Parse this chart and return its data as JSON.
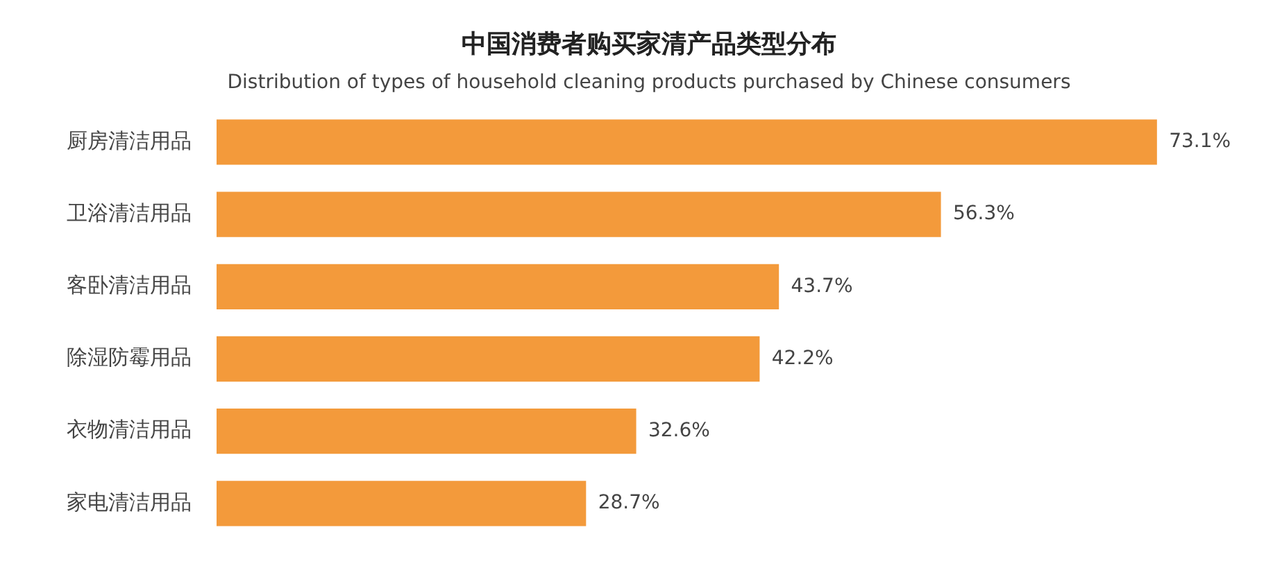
{
  "chart_data": {
    "type": "bar",
    "orientation": "horizontal",
    "title": "中国消费者购买家清产品类型分布",
    "subtitle": "Distribution of types of household cleaning products purchased by Chinese consumers",
    "categories": [
      "厨房清洁用品",
      "卫浴清洁用品",
      "客卧清洁用品",
      "除湿防霉用品",
      "衣物清洁用品",
      "家电清洁用品"
    ],
    "values": [
      73.1,
      56.3,
      43.7,
      42.2,
      32.6,
      28.7
    ],
    "color": "#f39a3b",
    "value_labels": [
      "73.1%",
      "56.3%",
      "43.7%",
      "42.2%",
      "32.6%",
      "28.7%"
    ],
    "tick_labels": "y"
  }
}
